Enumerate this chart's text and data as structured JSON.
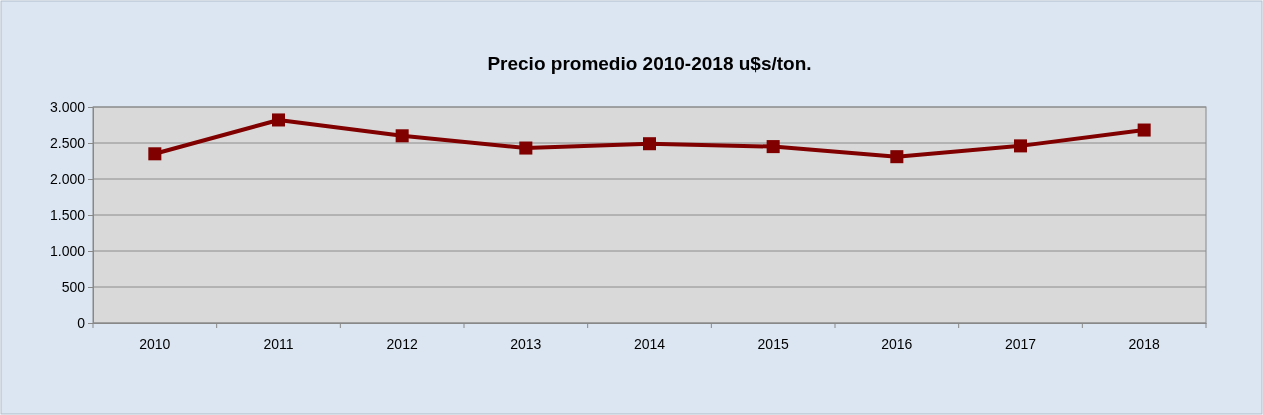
{
  "chart_data": {
    "type": "line",
    "title": "Precio promedio 2010-2018 u$s/ton.",
    "categories": [
      "2010",
      "2011",
      "2012",
      "2013",
      "2014",
      "2015",
      "2016",
      "2017",
      "2018"
    ],
    "series": [
      {
        "color": "#800000",
        "values": [
          2350,
          2820,
          2600,
          2430,
          2490,
          2450,
          2310,
          2460,
          2680
        ]
      }
    ],
    "ylim": [
      0,
      3000
    ],
    "yticks": [
      {
        "value": 0,
        "label": "0"
      },
      {
        "value": 500,
        "label": "500"
      },
      {
        "value": 1000,
        "label": "1.000"
      },
      {
        "value": 1500,
        "label": "1.500"
      },
      {
        "value": 2000,
        "label": "2.000"
      },
      {
        "value": 2500,
        "label": "2.500"
      },
      {
        "value": 3000,
        "label": "3.000"
      }
    ],
    "grid": "y",
    "marker": "square",
    "line_style": "solid"
  }
}
